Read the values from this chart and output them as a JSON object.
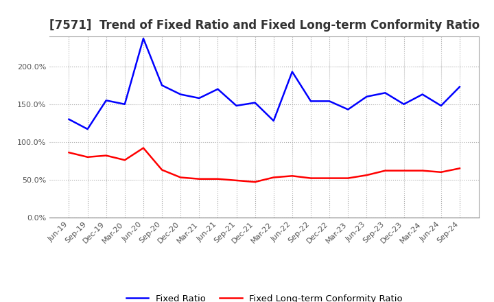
{
  "title": "[7571]  Trend of Fixed Ratio and Fixed Long-term Conformity Ratio",
  "x_labels": [
    "Jun-19",
    "Sep-19",
    "Dec-19",
    "Mar-20",
    "Jun-20",
    "Sep-20",
    "Dec-20",
    "Mar-21",
    "Jun-21",
    "Sep-21",
    "Dec-21",
    "Mar-22",
    "Jun-22",
    "Sep-22",
    "Dec-22",
    "Mar-23",
    "Jun-23",
    "Sep-23",
    "Dec-23",
    "Mar-24",
    "Jun-24",
    "Sep-24"
  ],
  "fixed_ratio": [
    130,
    117,
    155,
    150,
    237,
    175,
    163,
    158,
    170,
    148,
    152,
    128,
    193,
    154,
    154,
    143,
    160,
    165,
    150,
    163,
    148,
    173
  ],
  "fixed_lt_ratio": [
    86,
    80,
    82,
    76,
    92,
    63,
    53,
    51,
    51,
    49,
    47,
    53,
    55,
    52,
    52,
    52,
    56,
    62,
    62,
    62,
    60,
    65
  ],
  "ylim": [
    0,
    240
  ],
  "yticks": [
    0,
    50,
    100,
    150,
    200
  ],
  "ytick_labels": [
    "0.0%",
    "50.0%",
    "100.0%",
    "150.0%",
    "200.0%"
  ],
  "blue_color": "#0000FF",
  "red_color": "#FF0000",
  "grid_color": "#AAAAAA",
  "bg_color": "#FFFFFF",
  "plot_bg_color": "#FFFFFF",
  "legend_fixed_ratio": "Fixed Ratio",
  "legend_fixed_lt_ratio": "Fixed Long-term Conformity Ratio",
  "title_fontsize": 12,
  "tick_fontsize": 8,
  "legend_fontsize": 9.5
}
